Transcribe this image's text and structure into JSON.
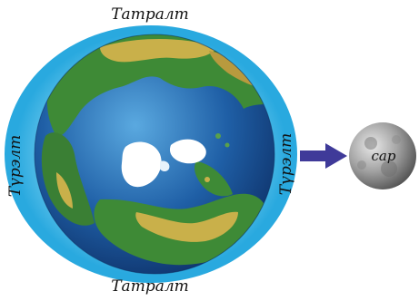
{
  "labels": {
    "top": "Татралт",
    "bottom": "Татралт",
    "left": "Түрэлт",
    "right": "Түрэлт",
    "moon": "сар"
  },
  "colors": {
    "bulge_outer": "#29a9df",
    "bulge_inner": "#8fd8f4",
    "ocean": "#1f5fa6",
    "land_green": "#3e8a36",
    "land_yellow": "#c9b04a",
    "ice": "#ffffff",
    "arrow": "#3f3a99",
    "moon": "#8f8f8f"
  },
  "icons": {
    "arrow": "arrow-right-icon"
  }
}
